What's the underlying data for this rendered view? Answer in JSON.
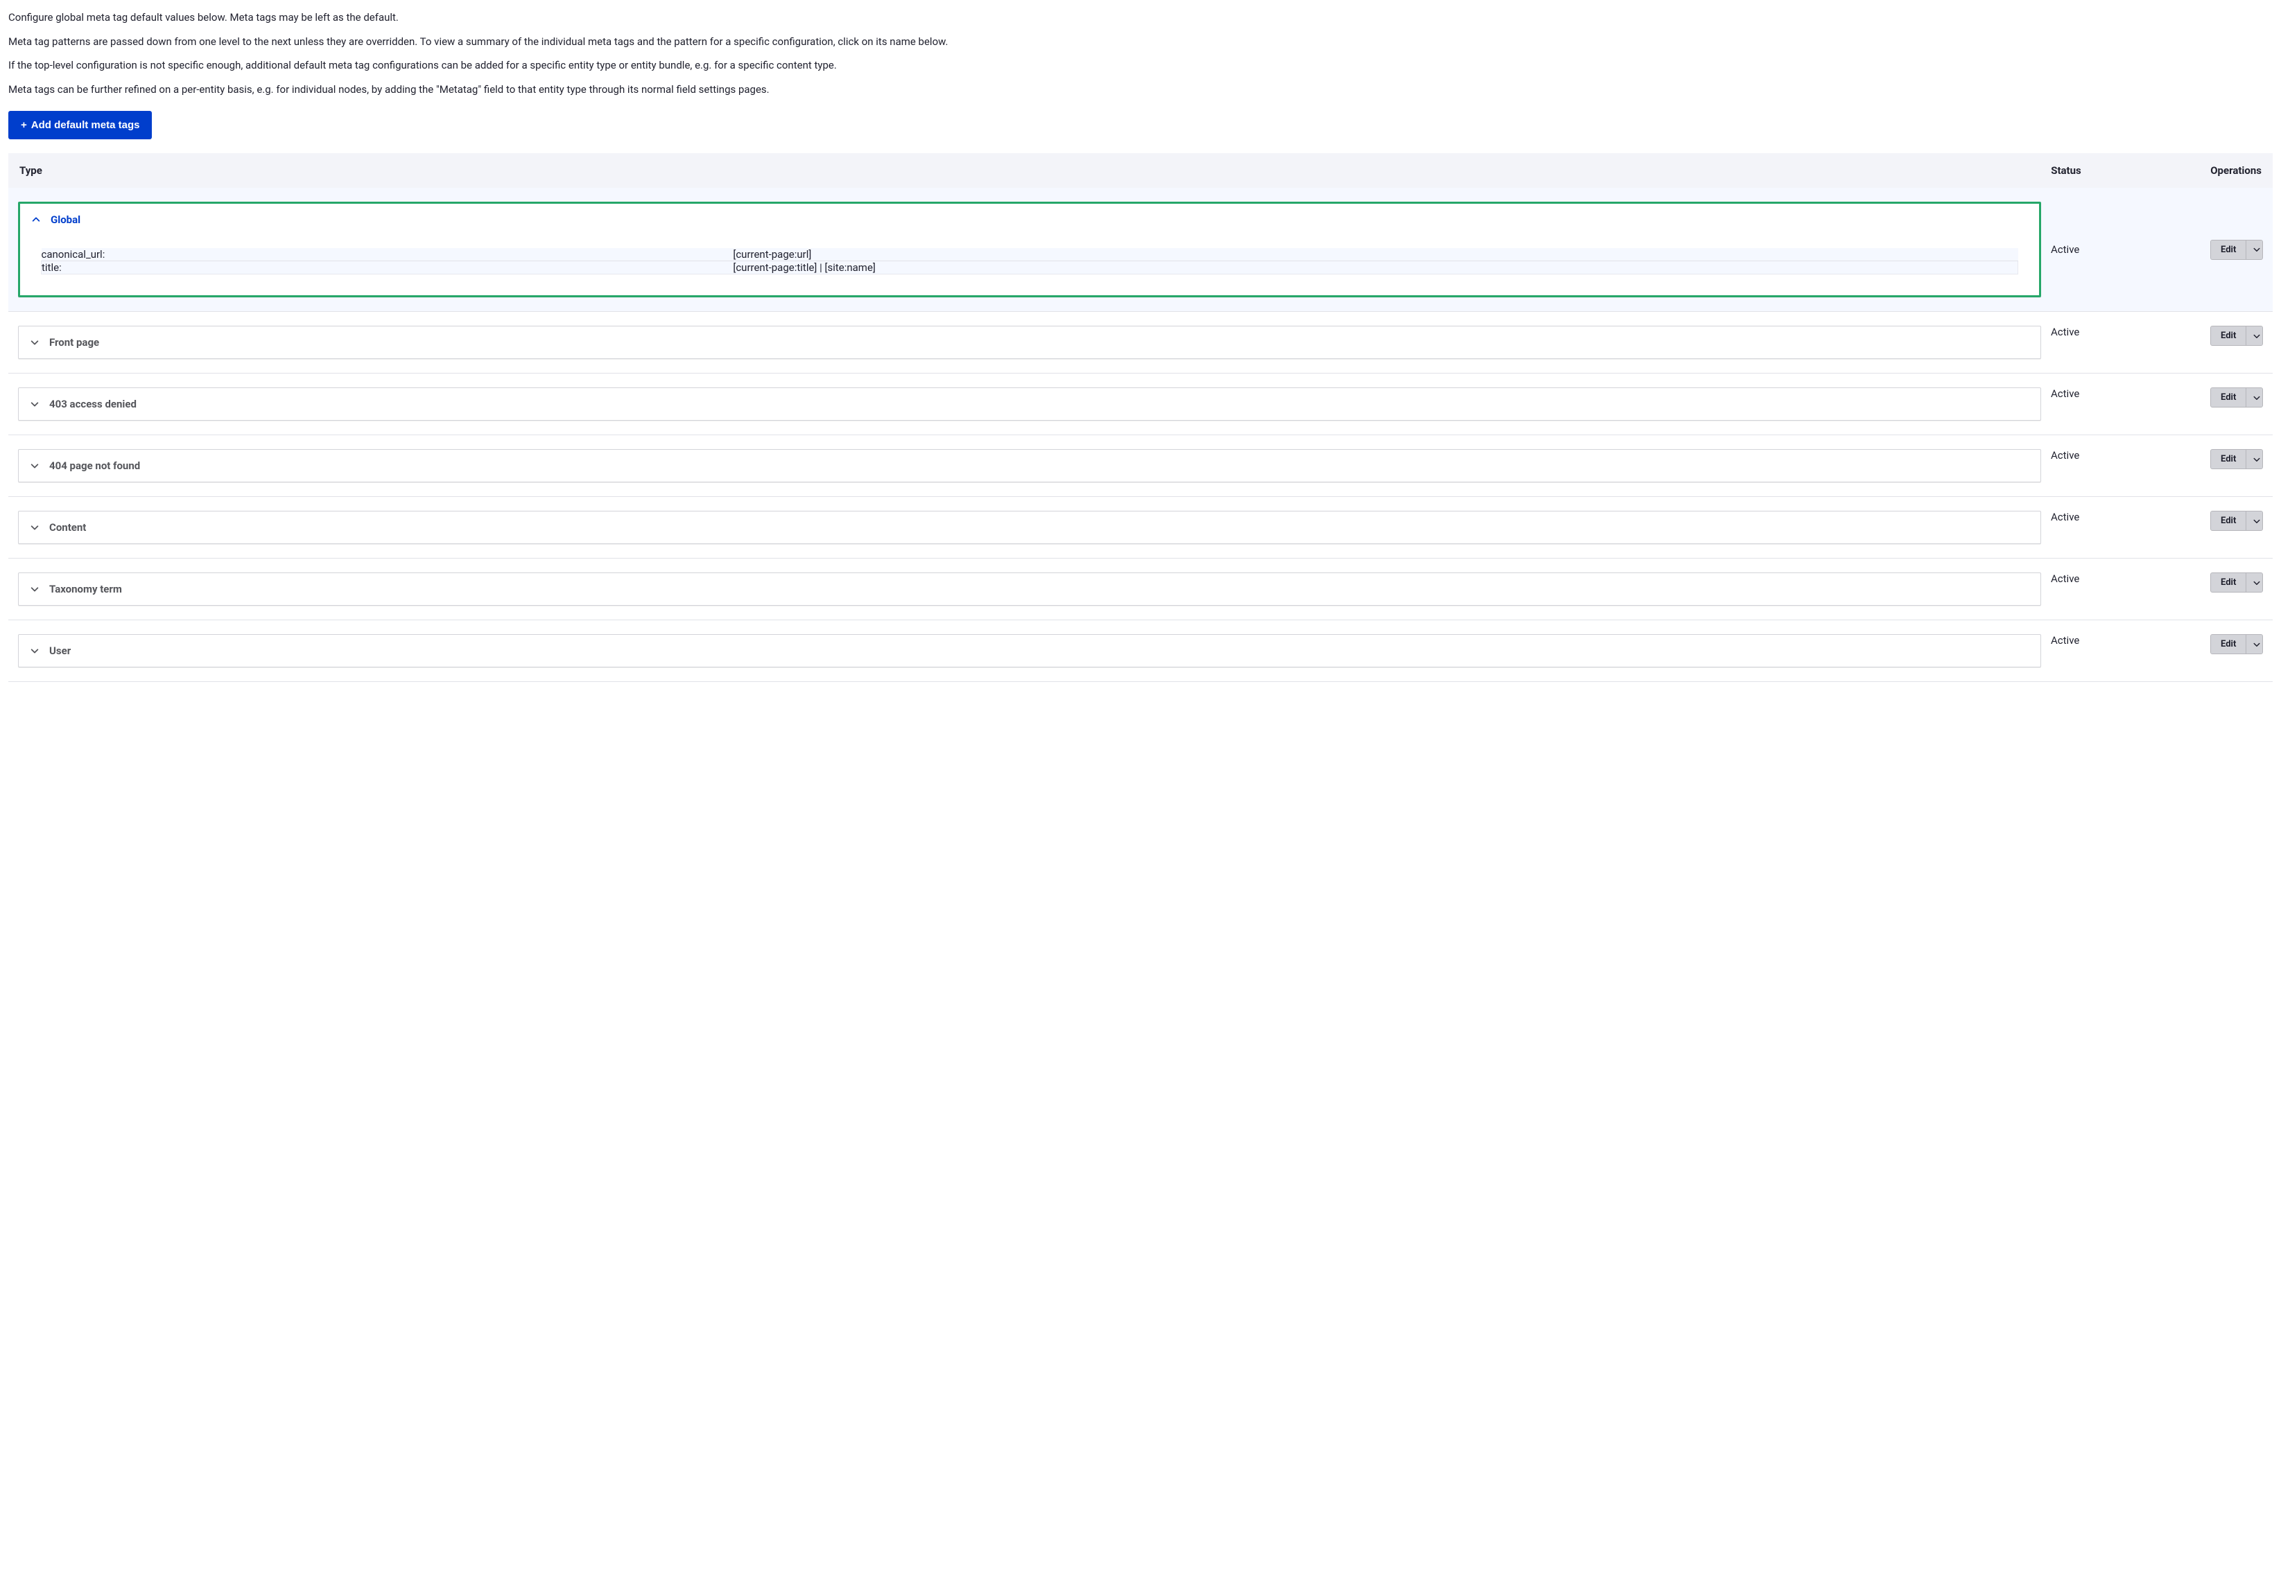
{
  "intro": {
    "p1": "Configure global meta tag default values below. Meta tags may be left as the default.",
    "p2": "Meta tag patterns are passed down from one level to the next unless they are overridden. To view a summary of the individual meta tags and the pattern for a specific configuration, click on its name below.",
    "p3": "If the top-level configuration is not specific enough, additional default meta tag configurations can be added for a specific entity type or entity bundle, e.g. for a specific content type.",
    "p4": "Meta tags can be further refined on a per-entity basis, e.g. for individual nodes, by adding the \"Metatag\" field to that entity type through its normal field settings pages."
  },
  "add_button": "Add default meta tags",
  "columns": {
    "type": "Type",
    "status": "Status",
    "operations": "Operations"
  },
  "ops": {
    "edit": "Edit"
  },
  "rows": [
    {
      "label": "Global",
      "status": "Active",
      "expanded": true,
      "details": [
        {
          "key": "canonical_url:",
          "value": "[current-page:url]"
        },
        {
          "key": "title:",
          "value": "[current-page:title] | [site:name]"
        }
      ]
    },
    {
      "label": "Front page",
      "status": "Active",
      "expanded": false
    },
    {
      "label": "403 access denied",
      "status": "Active",
      "expanded": false
    },
    {
      "label": "404 page not found",
      "status": "Active",
      "expanded": false
    },
    {
      "label": "Content",
      "status": "Active",
      "expanded": false
    },
    {
      "label": "Taxonomy term",
      "status": "Active",
      "expanded": false
    },
    {
      "label": "User",
      "status": "Active",
      "expanded": false
    }
  ],
  "colors": {
    "primary": "#003ecc",
    "expanded_border": "#26a769",
    "row_bg_expanded": "#f5f8ff",
    "header_bg": "#f3f4f9",
    "button_bg": "#d3d4d9"
  }
}
